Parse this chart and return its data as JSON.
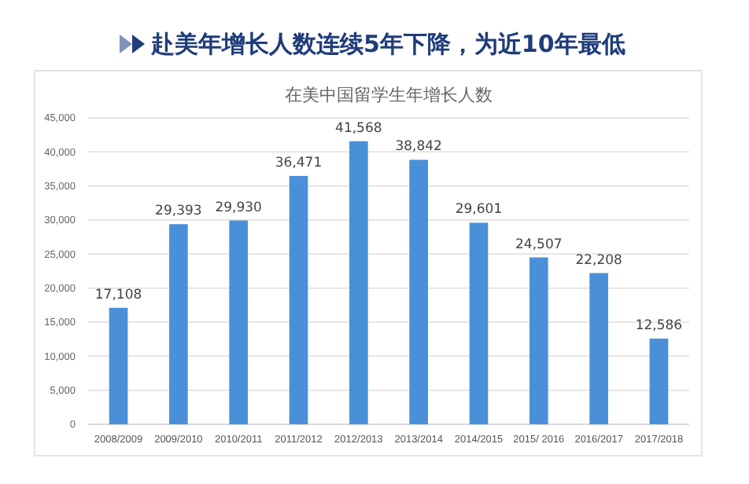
{
  "chart_data": {
    "type": "bar",
    "title": "赴美年增长人数连续5年下降，为近10年最低",
    "subtitle": "在美中国留学生年增长人数",
    "categories": [
      "2008/2009",
      "2009/2010",
      "2010/2011",
      "2011/2012",
      "2012/2013",
      "2013/2014",
      "2014/2015",
      "2015/ 2016",
      "2016/2017",
      "2017/2018"
    ],
    "values": [
      17108,
      29393,
      29930,
      36471,
      41568,
      38842,
      29601,
      24507,
      22208,
      12586
    ],
    "color": "#4a90d9",
    "ylim": [
      0,
      45000
    ],
    "yticks": [
      {
        "value": 0,
        "label": "0"
      },
      {
        "value": 5000,
        "label": "5,000"
      },
      {
        "value": 10000,
        "label": "10,000"
      },
      {
        "value": 15000,
        "label": "15,000"
      },
      {
        "value": 20000,
        "label": "20,000"
      },
      {
        "value": 25000,
        "label": "25,000"
      },
      {
        "value": 30000,
        "label": "30,000"
      },
      {
        "value": 35000,
        "label": "35,000"
      },
      {
        "value": 40000,
        "label": "40,000"
      },
      {
        "value": 45000,
        "label": "45,000"
      }
    ],
    "value_labels": [
      "17,108",
      "29,393",
      "29,930",
      "36,471",
      "41,568",
      "38,842",
      "29,601",
      "24,507",
      "22,208",
      "12,586"
    ],
    "grid": "y"
  }
}
